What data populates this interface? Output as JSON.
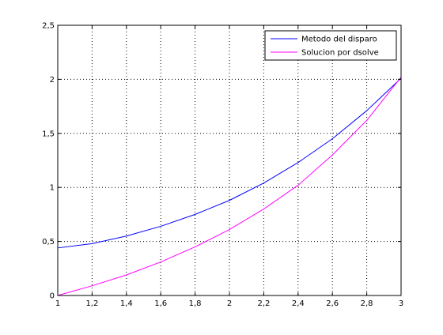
{
  "chart_data": {
    "type": "line",
    "title": "",
    "xlabel": "",
    "ylabel": "",
    "xlim": [
      1,
      3
    ],
    "ylim": [
      0,
      2.5
    ],
    "xticks": [
      1,
      1.2,
      1.4,
      1.6,
      1.8,
      2,
      2.2,
      2.4,
      2.6,
      2.8,
      3
    ],
    "xtick_labels": [
      "1",
      "1,2",
      "1,4",
      "1,6",
      "1,8",
      "2",
      "2,2",
      "2,4",
      "2,6",
      "2,8",
      "3"
    ],
    "yticks": [
      0,
      0.5,
      1,
      1.5,
      2,
      2.5
    ],
    "ytick_labels": [
      "0",
      "0,5",
      "1",
      "1,5",
      "2",
      "2,5"
    ],
    "grid": true,
    "legend_position": "top-right",
    "series": [
      {
        "name": "Metodo del disparo",
        "color": "#0000ff",
        "x": [
          1,
          1.2,
          1.4,
          1.6,
          1.8,
          2,
          2.2,
          2.4,
          2.6,
          2.8,
          3
        ],
        "y": [
          0.44,
          0.48,
          0.55,
          0.64,
          0.75,
          0.88,
          1.04,
          1.23,
          1.45,
          1.71,
          2.01
        ]
      },
      {
        "name": "Solucion por dsolve",
        "color": "#ff00ff",
        "x": [
          1,
          1.2,
          1.4,
          1.6,
          1.8,
          2,
          2.2,
          2.4,
          2.6,
          2.8,
          3
        ],
        "y": [
          0,
          0.09,
          0.19,
          0.31,
          0.45,
          0.61,
          0.8,
          1.02,
          1.3,
          1.62,
          2.02
        ]
      }
    ]
  }
}
